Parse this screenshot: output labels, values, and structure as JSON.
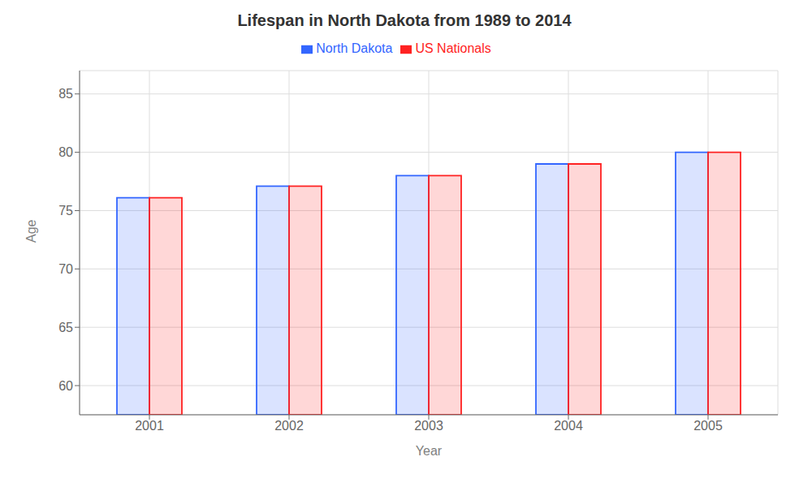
{
  "chart_data": {
    "type": "bar",
    "title": "Lifespan in North Dakota from 1989 to 2014",
    "xlabel": "Year",
    "ylabel": "Age",
    "categories": [
      2001,
      2002,
      2003,
      2004,
      2005
    ],
    "series": [
      {
        "name": "North Dakota",
        "color": "#3366ff",
        "values": [
          76.1,
          77.1,
          78.0,
          79.0,
          80.0
        ]
      },
      {
        "name": "US Nationals",
        "color": "#ff2222",
        "values": [
          76.1,
          77.1,
          78.0,
          79.0,
          80.0
        ]
      }
    ],
    "ylim": [
      57.5,
      87
    ],
    "yticks": [
      60,
      65,
      70,
      75,
      80,
      85
    ],
    "grid": true,
    "legend": "top"
  }
}
